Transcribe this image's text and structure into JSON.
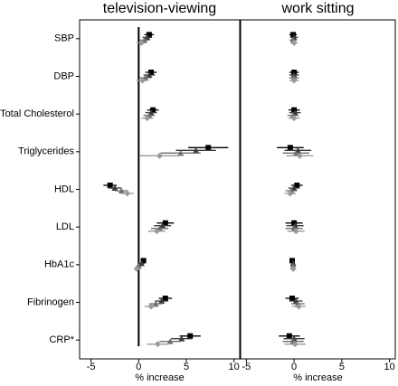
{
  "chart_data": [
    {
      "type": "forest",
      "title": "television-viewing",
      "xlabel": "% increase",
      "categories": [
        "SBP",
        "DBP",
        "Total Cholesterol",
        "Triglycerides",
        "HDL",
        "LDL",
        "HbA1c",
        "Fibrinogen",
        "CRP*"
      ],
      "xlim": [
        -6.2,
        10.6
      ],
      "xticks": [
        -5,
        0,
        5,
        10
      ],
      "refline": 0,
      "series": [
        {
          "color": "#000000",
          "marker": "square",
          "values": [
            1.1,
            1.3,
            1.5,
            7.3,
            -3.0,
            2.8,
            0.5,
            2.8,
            5.4
          ],
          "lower": [
            0.6,
            0.7,
            0.9,
            5.2,
            -3.7,
            1.9,
            0.2,
            2.1,
            4.3
          ],
          "upper": [
            1.6,
            1.9,
            2.1,
            9.4,
            -2.3,
            3.7,
            0.8,
            3.5,
            6.5
          ]
        },
        {
          "color": "#3a3a3a",
          "marker": "triangle",
          "values": [
            0.9,
            1.1,
            1.3,
            6.0,
            -2.5,
            2.5,
            0.3,
            2.4,
            4.5
          ],
          "lower": [
            0.4,
            0.5,
            0.7,
            3.9,
            -3.2,
            1.6,
            0.0,
            1.7,
            3.4
          ],
          "upper": [
            1.4,
            1.7,
            1.9,
            8.1,
            -1.8,
            3.4,
            0.6,
            3.1,
            5.6
          ]
        },
        {
          "color": "#6e6e6e",
          "marker": "triangle",
          "values": [
            0.6,
            0.7,
            1.1,
            4.4,
            -1.8,
            2.2,
            0.0,
            1.8,
            3.3
          ],
          "lower": [
            0.1,
            0.1,
            0.5,
            2.3,
            -2.5,
            1.3,
            -0.3,
            1.1,
            2.2
          ],
          "upper": [
            1.1,
            1.3,
            1.7,
            6.5,
            -1.1,
            3.1,
            0.3,
            2.5,
            4.4
          ]
        },
        {
          "color": "#9a9a9a",
          "marker": "diamond",
          "values": [
            0.3,
            0.4,
            0.9,
            2.2,
            -1.2,
            1.9,
            -0.2,
            1.3,
            2.0
          ],
          "lower": [
            -0.2,
            -0.2,
            0.3,
            0.1,
            -1.9,
            1.0,
            -0.5,
            0.6,
            0.9
          ],
          "upper": [
            0.8,
            1.0,
            1.5,
            4.3,
            -0.5,
            2.8,
            0.1,
            2.0,
            3.1
          ]
        }
      ]
    },
    {
      "type": "forest",
      "title": "work sitting",
      "xlabel": "% increase",
      "xlim": [
        -5.6,
        10.6
      ],
      "xticks": [
        -5,
        0,
        5,
        10
      ],
      "series": [
        {
          "color": "#000000",
          "marker": "square",
          "values": [
            -0.1,
            0.0,
            0.0,
            -0.4,
            0.3,
            0.0,
            -0.2,
            -0.2,
            -0.5
          ],
          "lower": [
            -0.5,
            -0.5,
            -0.6,
            -1.8,
            -0.3,
            -0.9,
            -0.4,
            -0.9,
            -1.6
          ],
          "upper": [
            0.3,
            0.5,
            0.6,
            1.0,
            0.9,
            0.9,
            0.0,
            0.5,
            0.6
          ]
        },
        {
          "color": "#3a3a3a",
          "marker": "triangle",
          "values": [
            0.0,
            0.0,
            0.1,
            0.4,
            0.0,
            0.1,
            -0.1,
            0.2,
            0.0
          ],
          "lower": [
            -0.4,
            -0.5,
            -0.5,
            -1.0,
            -0.6,
            -0.8,
            -0.3,
            -0.5,
            -1.1
          ],
          "upper": [
            0.4,
            0.5,
            0.7,
            1.8,
            0.6,
            1.0,
            0.1,
            0.9,
            1.1
          ]
        },
        {
          "color": "#6e6e6e",
          "marker": "triangle",
          "values": [
            -0.1,
            0.0,
            -0.1,
            0.2,
            -0.3,
            0.0,
            -0.1,
            0.4,
            -0.1
          ],
          "lower": [
            -0.5,
            -0.5,
            -0.7,
            -1.2,
            -0.9,
            -0.9,
            -0.3,
            -0.3,
            -1.2
          ],
          "upper": [
            0.3,
            0.5,
            0.5,
            1.6,
            0.3,
            0.9,
            0.1,
            1.1,
            1.0
          ]
        },
        {
          "color": "#9a9a9a",
          "marker": "diamond",
          "values": [
            0.0,
            0.0,
            0.0,
            0.6,
            -0.4,
            0.2,
            -0.1,
            0.5,
            0.1
          ],
          "lower": [
            -0.4,
            -0.5,
            -0.6,
            -0.8,
            -1.0,
            -0.7,
            -0.3,
            -0.2,
            -1.0
          ],
          "upper": [
            0.4,
            0.5,
            0.6,
            2.0,
            0.2,
            1.1,
            0.1,
            1.2,
            1.2
          ]
        }
      ]
    }
  ]
}
